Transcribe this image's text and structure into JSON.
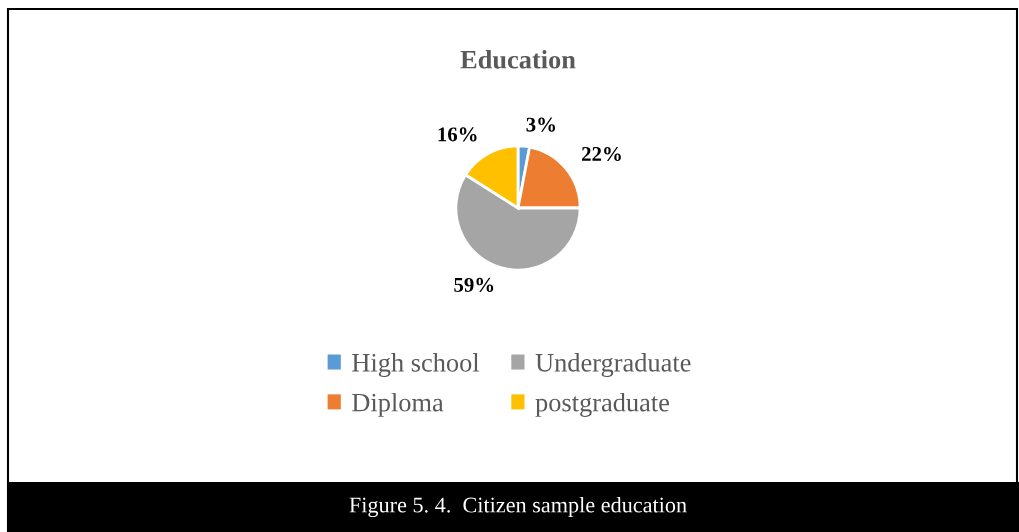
{
  "chart_data": {
    "type": "pie",
    "title": "Education",
    "categories": [
      "High school",
      "Diploma",
      "Undergraduate",
      "postgraduate"
    ],
    "values": [
      3,
      22,
      59,
      16
    ],
    "colors": [
      "#5b9bd5",
      "#ed7d31",
      "#a5a5a5",
      "#ffc000"
    ],
    "value_labels": [
      "3%",
      "22%",
      "59%",
      "16%"
    ],
    "legend": "bottom",
    "annotations": [
      "Figure 5. 4.  Citizen sample education"
    ]
  }
}
